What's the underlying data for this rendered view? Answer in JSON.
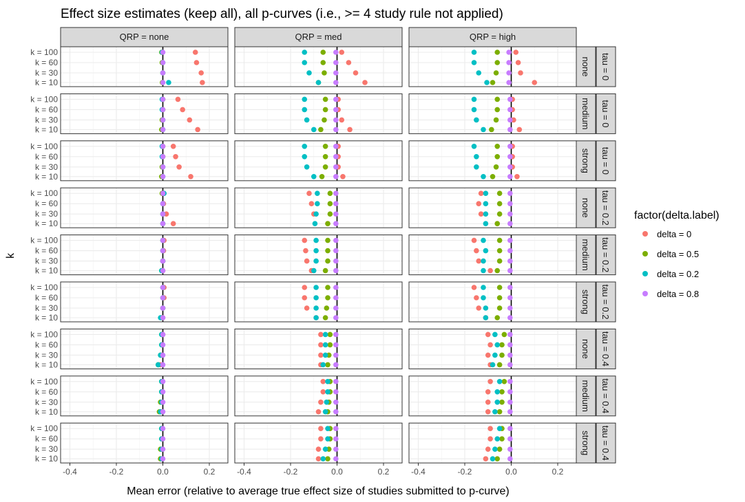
{
  "chart_data": {
    "type": "scatter",
    "title": "Effect size estimates (keep all), all p-curves (i.e., >= 4 study rule not applied)",
    "xlabel": "Mean error (relative to average true effect size of studies submitted to p-curve)",
    "ylabel": "k",
    "xlim": [
      -0.44,
      0.28
    ],
    "x_ticks": [
      -0.4,
      -0.2,
      0.0,
      0.2
    ],
    "x_tick_labels": [
      "-0.4",
      "-0.2",
      "0.0",
      "0.2"
    ],
    "y_categories": [
      "k = 10",
      "k = 30",
      "k = 60",
      "k = 100"
    ],
    "reference_line_x": 0,
    "grid": true,
    "col_facet": {
      "labels": [
        "QRP = none",
        "QRP = med",
        "QRP = high"
      ]
    },
    "row_facet": {
      "inner_labels": [
        "none",
        "medium",
        "strong",
        "none",
        "medium",
        "strong",
        "none",
        "medium",
        "strong"
      ],
      "outer_labels": [
        "tau = 0",
        "tau = 0",
        "tau = 0",
        "tau = 0.2",
        "tau = 0.2",
        "tau = 0.2",
        "tau = 0.4",
        "tau = 0.4",
        "tau = 0.4"
      ]
    },
    "legend": {
      "title": "factor(delta.label)",
      "position": "right",
      "entries": [
        {
          "label": "delta = 0",
          "color": "#F8766D"
        },
        {
          "label": "delta = 0.5",
          "color": "#7CAE00"
        },
        {
          "label": "delta = 0.2",
          "color": "#00BFC4"
        },
        {
          "label": "delta = 0.8",
          "color": "#C77CFF"
        }
      ]
    },
    "series_order": [
      "delta = 0",
      "delta = 0.5",
      "delta = 0.2",
      "delta = 0.8"
    ],
    "series_note": "values[row][col][series] = mean error at k = 100, 60, 30, 10",
    "values": [
      [
        [
          [
            0.14,
            0.145,
            0.165,
            0.17
          ],
          [
            -0.005,
            -0.003,
            0.0,
            -0.002
          ],
          [
            -0.003,
            0.0,
            0.0,
            0.025
          ],
          [
            0.0,
            0.0,
            0.0,
            0.0
          ]
        ],
        [
          [
            0.02,
            0.05,
            0.08,
            0.12
          ],
          [
            -0.06,
            -0.06,
            -0.055,
            -0.08
          ],
          [
            -0.14,
            -0.14,
            -0.12,
            -0.08
          ],
          [
            -0.005,
            -0.005,
            -0.005,
            -0.005
          ]
        ],
        [
          [
            0.02,
            0.03,
            0.04,
            0.1
          ],
          [
            -0.06,
            -0.06,
            -0.065,
            -0.08
          ],
          [
            -0.16,
            -0.16,
            -0.14,
            -0.105
          ],
          [
            -0.01,
            -0.01,
            -0.01,
            -0.01
          ]
        ]
      ],
      [
        [
          [
            0.065,
            0.085,
            0.115,
            0.15
          ],
          [
            0.0,
            0.0,
            -0.003,
            -0.005
          ],
          [
            -0.003,
            -0.003,
            0.0,
            0.0
          ],
          [
            0.0,
            0.0,
            0.0,
            0.0
          ]
        ],
        [
          [
            0.005,
            0.005,
            0.02,
            0.055
          ],
          [
            -0.05,
            -0.05,
            -0.055,
            -0.07
          ],
          [
            -0.14,
            -0.14,
            -0.13,
            -0.1
          ],
          [
            -0.005,
            -0.005,
            -0.005,
            -0.005
          ]
        ],
        [
          [
            0.005,
            0.005,
            0.01,
            0.035
          ],
          [
            -0.06,
            -0.06,
            -0.065,
            -0.085
          ],
          [
            -0.16,
            -0.16,
            -0.15,
            -0.12
          ],
          [
            -0.005,
            -0.005,
            -0.005,
            -0.005
          ]
        ]
      ],
      [
        [
          [
            0.045,
            0.055,
            0.07,
            0.12
          ],
          [
            0.0,
            0.0,
            -0.003,
            -0.005
          ],
          [
            -0.003,
            -0.003,
            0.0,
            0.0
          ],
          [
            0.0,
            0.0,
            0.0,
            0.0
          ]
        ],
        [
          [
            0.005,
            0.005,
            0.005,
            0.025
          ],
          [
            -0.05,
            -0.05,
            -0.05,
            -0.065
          ],
          [
            -0.14,
            -0.14,
            -0.13,
            -0.1
          ],
          [
            -0.005,
            -0.005,
            -0.005,
            -0.005
          ]
        ],
        [
          [
            0.005,
            0.005,
            0.005,
            0.025
          ],
          [
            -0.06,
            -0.06,
            -0.065,
            -0.08
          ],
          [
            -0.16,
            -0.15,
            -0.15,
            -0.12
          ],
          [
            -0.005,
            -0.005,
            -0.005,
            -0.005
          ]
        ]
      ],
      [
        [
          [
            0.005,
            0.003,
            0.015,
            0.045
          ],
          [
            -0.003,
            0.0,
            0.0,
            0.0
          ],
          [
            0.005,
            0.0,
            0.0,
            0.0
          ],
          [
            0.0,
            0.0,
            0.0,
            0.0
          ]
        ],
        [
          [
            -0.12,
            -0.11,
            -0.1,
            -0.04
          ],
          [
            -0.03,
            -0.03,
            -0.03,
            -0.04
          ],
          [
            -0.085,
            -0.085,
            -0.09,
            -0.095
          ],
          [
            -0.005,
            -0.005,
            -0.005,
            -0.005
          ]
        ],
        [
          [
            -0.13,
            -0.14,
            -0.13,
            -0.06
          ],
          [
            -0.05,
            -0.05,
            -0.05,
            -0.06
          ],
          [
            -0.11,
            -0.11,
            -0.11,
            -0.11
          ],
          [
            -0.005,
            -0.005,
            -0.005,
            -0.005
          ]
        ]
      ],
      [
        [
          [
            0.005,
            0.003,
            0.0,
            0.0
          ],
          [
            0.0,
            0.0,
            0.0,
            -0.005
          ],
          [
            0.0,
            0.0,
            0.0,
            -0.005
          ],
          [
            0.0,
            0.0,
            0.0,
            0.0
          ]
        ],
        [
          [
            -0.14,
            -0.135,
            -0.13,
            -0.11
          ],
          [
            -0.04,
            -0.04,
            -0.04,
            -0.05
          ],
          [
            -0.09,
            -0.09,
            -0.09,
            -0.1
          ],
          [
            -0.005,
            -0.005,
            -0.005,
            -0.005
          ]
        ],
        [
          [
            -0.16,
            -0.15,
            -0.14,
            -0.09
          ],
          [
            -0.05,
            -0.05,
            -0.05,
            -0.06
          ],
          [
            -0.12,
            -0.11,
            -0.12,
            -0.12
          ],
          [
            -0.005,
            -0.005,
            -0.005,
            -0.005
          ]
        ]
      ],
      [
        [
          [
            0.005,
            0.005,
            0.0,
            0.0
          ],
          [
            0.0,
            0.0,
            0.0,
            -0.005
          ],
          [
            0.0,
            0.0,
            0.0,
            -0.01
          ],
          [
            0.0,
            0.0,
            0.0,
            0.0
          ]
        ],
        [
          [
            -0.14,
            -0.14,
            -0.13,
            -0.09
          ],
          [
            -0.04,
            -0.04,
            -0.045,
            -0.05
          ],
          [
            -0.09,
            -0.09,
            -0.09,
            -0.09
          ],
          [
            -0.005,
            -0.005,
            -0.005,
            -0.005
          ]
        ],
        [
          [
            -0.16,
            -0.15,
            -0.14,
            -0.11
          ],
          [
            -0.05,
            -0.05,
            -0.05,
            -0.06
          ],
          [
            -0.12,
            -0.12,
            -0.11,
            -0.11
          ],
          [
            -0.005,
            -0.005,
            -0.005,
            -0.005
          ]
        ]
      ],
      [
        [
          [
            0.0,
            -0.003,
            -0.005,
            -0.01
          ],
          [
            -0.005,
            -0.005,
            -0.01,
            -0.02
          ],
          [
            -0.005,
            -0.005,
            -0.01,
            -0.02
          ],
          [
            0.0,
            0.0,
            0.0,
            0.0
          ]
        ],
        [
          [
            -0.07,
            -0.07,
            -0.07,
            -0.07
          ],
          [
            -0.03,
            -0.03,
            -0.035,
            -0.04
          ],
          [
            -0.05,
            -0.05,
            -0.05,
            -0.06
          ],
          [
            -0.005,
            -0.005,
            -0.005,
            -0.005
          ]
        ],
        [
          [
            -0.1,
            -0.09,
            -0.1,
            -0.09
          ],
          [
            -0.03,
            -0.04,
            -0.04,
            -0.05
          ],
          [
            -0.07,
            -0.06,
            -0.07,
            -0.08
          ],
          [
            -0.005,
            -0.005,
            -0.005,
            -0.005
          ]
        ]
      ],
      [
        [
          [
            -0.005,
            -0.005,
            -0.005,
            -0.005
          ],
          [
            -0.005,
            -0.005,
            -0.01,
            -0.015
          ],
          [
            -0.005,
            -0.005,
            -0.005,
            -0.01
          ],
          [
            0.0,
            0.0,
            0.0,
            0.0
          ]
        ],
        [
          [
            -0.06,
            -0.06,
            -0.07,
            -0.08
          ],
          [
            -0.03,
            -0.03,
            -0.035,
            -0.04
          ],
          [
            -0.04,
            -0.04,
            -0.045,
            -0.05
          ],
          [
            -0.005,
            -0.005,
            -0.005,
            -0.005
          ]
        ],
        [
          [
            -0.09,
            -0.1,
            -0.1,
            -0.1
          ],
          [
            -0.03,
            -0.04,
            -0.04,
            -0.05
          ],
          [
            -0.05,
            -0.06,
            -0.06,
            -0.07
          ],
          [
            -0.005,
            -0.005,
            -0.005,
            -0.005
          ]
        ]
      ],
      [
        [
          [
            -0.005,
            -0.005,
            -0.005,
            -0.01
          ],
          [
            -0.005,
            -0.005,
            -0.01,
            -0.01
          ],
          [
            -0.005,
            -0.005,
            -0.005,
            -0.005
          ],
          [
            0.0,
            0.0,
            0.0,
            0.0
          ]
        ],
        [
          [
            -0.07,
            -0.07,
            -0.08,
            -0.08
          ],
          [
            -0.03,
            -0.03,
            -0.035,
            -0.04
          ],
          [
            -0.04,
            -0.04,
            -0.05,
            -0.06
          ],
          [
            -0.005,
            -0.005,
            -0.005,
            -0.005
          ]
        ],
        [
          [
            -0.09,
            -0.09,
            -0.1,
            -0.11
          ],
          [
            -0.04,
            -0.04,
            -0.05,
            -0.06
          ],
          [
            -0.05,
            -0.06,
            -0.07,
            -0.08
          ],
          [
            -0.005,
            -0.005,
            -0.005,
            -0.005
          ]
        ]
      ]
    ]
  }
}
